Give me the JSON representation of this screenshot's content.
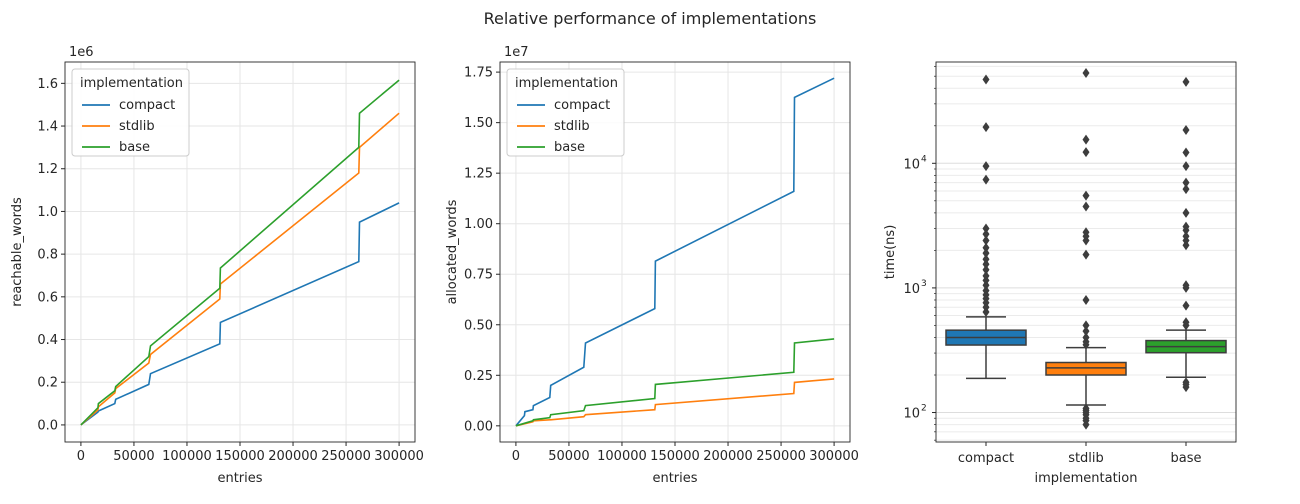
{
  "title": "Relative performance of implementations",
  "legend_title": "implementation",
  "colors": {
    "compact": "#1f77b4",
    "stdlib": "#ff7f0e",
    "base": "#2ca02c"
  },
  "chart_data": [
    {
      "type": "line",
      "xlabel": "entries",
      "ylabel": "reachable_words",
      "offset_label": "1e6",
      "xlim": [
        -15000,
        315000
      ],
      "ylim": [
        -0.08,
        1.7
      ],
      "xticks": [
        0,
        50000,
        100000,
        150000,
        200000,
        250000,
        300000
      ],
      "xtick_labels": [
        "0",
        "50000",
        "100000",
        "150000",
        "200000",
        "250000",
        "300000"
      ],
      "yticks": [
        0.0,
        0.2,
        0.4,
        0.6,
        0.8,
        1.0,
        1.2,
        1.4,
        1.6
      ],
      "ytick_labels": [
        "0.0",
        "0.2",
        "0.4",
        "0.6",
        "0.8",
        "1.0",
        "1.2",
        "1.4",
        "1.6"
      ],
      "legend": "upper-left",
      "series": [
        {
          "name": "compact",
          "x": [
            0,
            8000,
            16000,
            16500,
            32000,
            32800,
            64000,
            65600,
            131000,
            131500,
            262000,
            262700,
            300000
          ],
          "y": [
            0,
            0.03,
            0.06,
            0.065,
            0.1,
            0.12,
            0.19,
            0.24,
            0.38,
            0.48,
            0.765,
            0.95,
            1.04
          ]
        },
        {
          "name": "stdlib",
          "x": [
            0,
            16000,
            16500,
            32000,
            32800,
            64000,
            65600,
            131000,
            131500,
            262000,
            262700,
            300000
          ],
          "y": [
            0,
            0.07,
            0.085,
            0.15,
            0.17,
            0.29,
            0.33,
            0.59,
            0.66,
            1.18,
            1.3,
            1.46
          ]
        },
        {
          "name": "base",
          "x": [
            0,
            16000,
            16500,
            32000,
            32800,
            64000,
            65600,
            131000,
            131500,
            262000,
            262700,
            300000
          ],
          "y": [
            0,
            0.08,
            0.1,
            0.16,
            0.18,
            0.32,
            0.37,
            0.64,
            0.735,
            1.3,
            1.46,
            1.615
          ]
        }
      ]
    },
    {
      "type": "line",
      "xlabel": "entries",
      "ylabel": "allocated_words",
      "offset_label": "1e7",
      "xlim": [
        -15000,
        315000
      ],
      "ylim": [
        -0.08,
        1.8
      ],
      "xticks": [
        0,
        50000,
        100000,
        150000,
        200000,
        250000,
        300000
      ],
      "xtick_labels": [
        "0",
        "50000",
        "100000",
        "150000",
        "200000",
        "250000",
        "300000"
      ],
      "yticks": [
        0.0,
        0.25,
        0.5,
        0.75,
        1.0,
        1.25,
        1.5,
        1.75
      ],
      "ytick_labels": [
        "0.00",
        "0.25",
        "0.50",
        "0.75",
        "1.00",
        "1.25",
        "1.50",
        "1.75"
      ],
      "legend": "upper-left",
      "series": [
        {
          "name": "compact",
          "x": [
            0,
            8000,
            8500,
            16000,
            16500,
            32000,
            32800,
            64000,
            65600,
            131000,
            131500,
            262000,
            262700,
            300000
          ],
          "y": [
            0,
            0.05,
            0.07,
            0.08,
            0.1,
            0.14,
            0.2,
            0.29,
            0.41,
            0.58,
            0.815,
            1.16,
            1.625,
            1.72
          ]
        },
        {
          "name": "stdlib",
          "x": [
            0,
            16000,
            16500,
            32000,
            32800,
            64000,
            65600,
            131000,
            131500,
            262000,
            262700,
            300000
          ],
          "y": [
            0,
            0.02,
            0.025,
            0.03,
            0.03,
            0.045,
            0.055,
            0.08,
            0.105,
            0.16,
            0.215,
            0.232
          ]
        },
        {
          "name": "base",
          "x": [
            0,
            16000,
            16500,
            32000,
            32800,
            64000,
            65600,
            131000,
            131500,
            262000,
            262700,
            300000
          ],
          "y": [
            0,
            0.025,
            0.03,
            0.04,
            0.055,
            0.075,
            0.1,
            0.135,
            0.205,
            0.265,
            0.41,
            0.43
          ]
        }
      ]
    },
    {
      "type": "box",
      "xlabel": "implementation",
      "ylabel": "time(ns)",
      "yscale": "log",
      "ylim": [
        58,
        65000
      ],
      "categories": [
        "compact",
        "stdlib",
        "base"
      ],
      "yticks": [
        100,
        1000,
        10000
      ],
      "ytick_labels": [
        "10",
        "10",
        "10"
      ],
      "ytick_exponents": [
        "2",
        "3",
        "4"
      ],
      "boxes": [
        {
          "name": "compact",
          "whisker_low": 188,
          "q1": 348,
          "median": 400,
          "q3": 458,
          "whisker_high": 585,
          "outliers": [
            640,
            700,
            760,
            820,
            880,
            950,
            1050,
            1150,
            1250,
            1400,
            1550,
            1700,
            1900,
            2100,
            2400,
            2700,
            3000,
            7400,
            9500,
            19500,
            47000
          ]
        },
        {
          "name": "stdlib",
          "whisker_low": 115,
          "q1": 200,
          "median": 228,
          "q3": 252,
          "whisker_high": 332,
          "outliers": [
            80,
            86,
            90,
            96,
            100,
            104,
            108,
            350,
            370,
            400,
            450,
            500,
            800,
            1850,
            2400,
            2600,
            2800,
            4500,
            5500,
            12300,
            15500,
            53000
          ]
        },
        {
          "name": "base",
          "whisker_low": 192,
          "q1": 302,
          "median": 338,
          "q3": 378,
          "whisker_high": 458,
          "outliers": [
            160,
            168,
            175,
            500,
            530,
            720,
            1000,
            1050,
            2200,
            2400,
            2600,
            2900,
            3100,
            4000,
            6200,
            7000,
            9500,
            12200,
            18500,
            45000
          ]
        }
      ]
    }
  ]
}
